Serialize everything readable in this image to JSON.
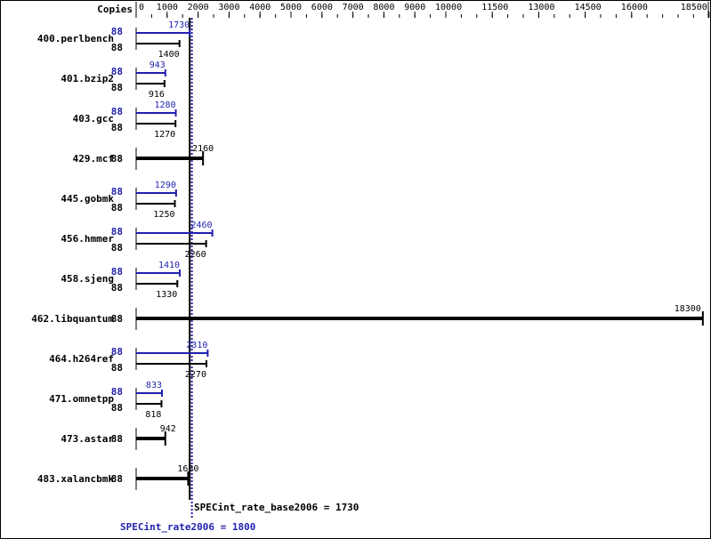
{
  "chart_data": {
    "type": "bar",
    "orientation": "horizontal",
    "axis_header": "Copies",
    "xlim": [
      0,
      18500
    ],
    "x_ticks": [
      0,
      1000,
      2000,
      3000,
      4000,
      5000,
      6000,
      7000,
      8000,
      9000,
      10000,
      11500,
      13000,
      14500,
      16000,
      18500
    ],
    "colors": {
      "peak": "#1f1faf",
      "base": "#000000"
    },
    "benchmarks": [
      {
        "name": "400.perlbench",
        "peak_copies": "88",
        "peak": 1730,
        "base_copies": "88",
        "base": 1400
      },
      {
        "name": "401.bzip2",
        "peak_copies": "88",
        "peak": 943,
        "base_copies": "88",
        "base": 916
      },
      {
        "name": "403.gcc",
        "peak_copies": "88",
        "peak": 1280,
        "base_copies": "88",
        "base": 1270
      },
      {
        "name": "429.mcf",
        "base_copies": "88",
        "base": 2160
      },
      {
        "name": "445.gobmk",
        "peak_copies": "88",
        "peak": 1290,
        "base_copies": "88",
        "base": 1250
      },
      {
        "name": "456.hmmer",
        "peak_copies": "88",
        "peak": 2460,
        "base_copies": "88",
        "base": 2260
      },
      {
        "name": "458.sjeng",
        "peak_copies": "88",
        "peak": 1410,
        "base_copies": "88",
        "base": 1330
      },
      {
        "name": "462.libquantum",
        "base_copies": "88",
        "base": 18300
      },
      {
        "name": "464.h264ref",
        "peak_copies": "88",
        "peak": 2310,
        "base_copies": "88",
        "base": 2270
      },
      {
        "name": "471.omnetpp",
        "peak_copies": "88",
        "peak": 833,
        "base_copies": "88",
        "base": 818
      },
      {
        "name": "473.astar",
        "base_copies": "88",
        "base": 942
      },
      {
        "name": "483.xalancbmk",
        "base_copies": "88",
        "base": 1680
      }
    ],
    "base_summary": {
      "label": "SPECint_rate_base2006 = 1730",
      "value": 1730
    },
    "peak_summary": {
      "label": "SPECint_rate2006 = 1800",
      "value": 1800
    }
  }
}
